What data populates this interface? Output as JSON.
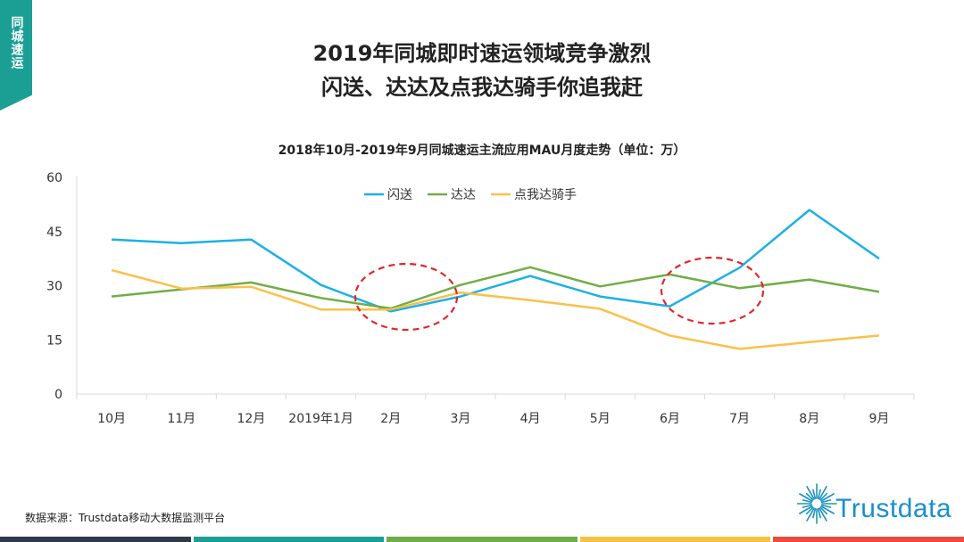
{
  "side_tab": "同城速运",
  "title_line1": "2019年同城即时速运领域竞争激烈",
  "title_line2": "闪送、达达及点我达骑手你追我赶",
  "source": "数据来源：Trustdata移动大数据监测平台",
  "logo_text": "Trustdata",
  "colors": {
    "accent": "#1b9f94",
    "shansong": "#1cb0e6",
    "dada": "#70ad47",
    "dianwoda": "#fbc04a",
    "highlight": "#e2262a",
    "bar": [
      "#2e3a48",
      "#1b9f94",
      "#70ad47",
      "#f6c244",
      "#e84d3d"
    ]
  },
  "chart_data": {
    "type": "line",
    "title": "2018年10月-2019年9月同城速运主流应用MAU月度走势（单位：万）",
    "categories": [
      "10月",
      "11月",
      "12月",
      "2019年1月",
      "2月",
      "3月",
      "4月",
      "5月",
      "6月",
      "7月",
      "8月",
      "9月"
    ],
    "ylim": [
      0,
      60
    ],
    "yticks": [
      "0",
      "15",
      "30",
      "45",
      "60"
    ],
    "legend_position": "top-center",
    "series": [
      {
        "name": "闪送",
        "values": [
          42.8,
          41.8,
          42.8,
          30.2,
          22.9,
          27.0,
          32.7,
          27.0,
          24.3,
          35.0,
          51.0,
          37.5
        ]
      },
      {
        "name": "达达",
        "values": [
          27.0,
          29.0,
          30.9,
          26.6,
          23.7,
          30.2,
          35.1,
          29.8,
          33.1,
          29.3,
          31.7,
          28.3
        ]
      },
      {
        "name": "点我达骑手",
        "values": [
          34.3,
          29.2,
          29.7,
          23.4,
          23.4,
          28.1,
          26.0,
          23.6,
          16.2,
          12.5,
          14.4,
          16.2
        ]
      }
    ],
    "highlight_ellipses_around": [
      "2月",
      "7月"
    ]
  }
}
